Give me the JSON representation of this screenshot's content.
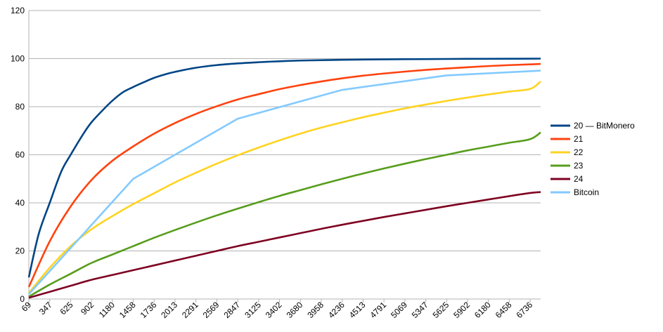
{
  "chart_data": {
    "type": "line",
    "title": "",
    "xlabel": "",
    "ylabel": "",
    "x_ticks": [
      69,
      347,
      625,
      902,
      1180,
      1458,
      1736,
      2013,
      2291,
      2569,
      2847,
      3125,
      3402,
      3680,
      3958,
      4236,
      4513,
      4791,
      5069,
      5347,
      5625,
      5902,
      6180,
      6458,
      6736
    ],
    "xlim": [
      69,
      6875
    ],
    "ylim": [
      0,
      120
    ],
    "y_ticks": [
      0,
      20,
      40,
      60,
      80,
      100,
      120
    ],
    "grid": "horizontal",
    "legend_position": "right",
    "series": [
      {
        "name": "20 — BitMonero",
        "color": "#004586",
        "x": [
          69,
          200,
          347,
          500,
          625,
          800,
          902,
          1050,
          1180,
          1320,
          1458,
          1600,
          1736,
          1900,
          2013,
          2291,
          2569,
          2847,
          3125,
          3402,
          3680,
          4236,
          4791,
          5347,
          5902,
          6458,
          6875
        ],
        "y": [
          9,
          27,
          40,
          53,
          60,
          69,
          73.5,
          78.5,
          82.5,
          86,
          88.2,
          90.2,
          92,
          93.6,
          94.5,
          96.2,
          97.3,
          98,
          98.5,
          98.9,
          99.2,
          99.5,
          99.7,
          99.8,
          99.9,
          99.95,
          100
        ]
      },
      {
        "name": "21",
        "color": "#ff420e",
        "x": [
          69,
          347,
          625,
          902,
          1180,
          1458,
          1736,
          2013,
          2291,
          2569,
          2847,
          3125,
          3402,
          3680,
          3958,
          4236,
          4513,
          4791,
          5069,
          5347,
          5625,
          5902,
          6180,
          6458,
          6736,
          6875
        ],
        "y": [
          5,
          24,
          38.5,
          49.5,
          57.5,
          63.5,
          68.8,
          73.2,
          77,
          80.2,
          83,
          85.2,
          87.3,
          89,
          90.5,
          91.8,
          92.9,
          93.8,
          94.6,
          95.3,
          95.9,
          96.4,
          96.9,
          97.3,
          97.6,
          97.8
        ]
      },
      {
        "name": "22",
        "color": "#ffd320",
        "x": [
          69,
          347,
          625,
          902,
          1180,
          1458,
          1736,
          2013,
          2291,
          2569,
          2847,
          3125,
          3402,
          3680,
          3958,
          4236,
          4513,
          4791,
          5069,
          5347,
          5625,
          5902,
          6180,
          6458,
          6736,
          6875
        ],
        "y": [
          2.5,
          13,
          22,
          29,
          34.5,
          39.5,
          44,
          48.5,
          52.5,
          56.3,
          59.8,
          63,
          66,
          68.8,
          71.3,
          73.5,
          75.6,
          77.5,
          79.3,
          80.9,
          82.4,
          83.8,
          85.1,
          86.3,
          87.4,
          90.5
        ]
      },
      {
        "name": "23",
        "color": "#579d1c",
        "x": [
          69,
          347,
          625,
          902,
          1180,
          1458,
          1736,
          2013,
          2291,
          2569,
          2847,
          3125,
          3402,
          3680,
          3958,
          4236,
          4513,
          4791,
          5069,
          5347,
          5625,
          5902,
          6180,
          6458,
          6736,
          6875
        ],
        "y": [
          1,
          6,
          10.5,
          15,
          18.5,
          22,
          25.5,
          28.7,
          31.8,
          34.8,
          37.6,
          40.3,
          42.9,
          45.3,
          47.7,
          50,
          52.2,
          54.3,
          56.3,
          58.2,
          60,
          61.8,
          63.4,
          65,
          66.5,
          69.3
        ]
      },
      {
        "name": "24",
        "color": "#7e0021",
        "x": [
          69,
          347,
          625,
          902,
          1180,
          1458,
          1736,
          2013,
          2291,
          2569,
          2847,
          3125,
          3402,
          3680,
          3958,
          4236,
          4513,
          4791,
          5069,
          5347,
          5625,
          5902,
          6180,
          6458,
          6736,
          6875
        ],
        "y": [
          0.5,
          3,
          5.5,
          8,
          10,
          12,
          14,
          16,
          18,
          20,
          22,
          23.8,
          25.6,
          27.4,
          29.2,
          30.9,
          32.5,
          34.1,
          35.6,
          37.1,
          38.6,
          40,
          41.4,
          42.8,
          44.1,
          44.5
        ]
      },
      {
        "name": "Bitcoin",
        "color": "#83caff",
        "x": [
          69,
          1458,
          2847,
          4236,
          5625,
          6875
        ],
        "y": [
          2,
          50,
          75,
          87,
          93,
          95
        ]
      }
    ]
  }
}
